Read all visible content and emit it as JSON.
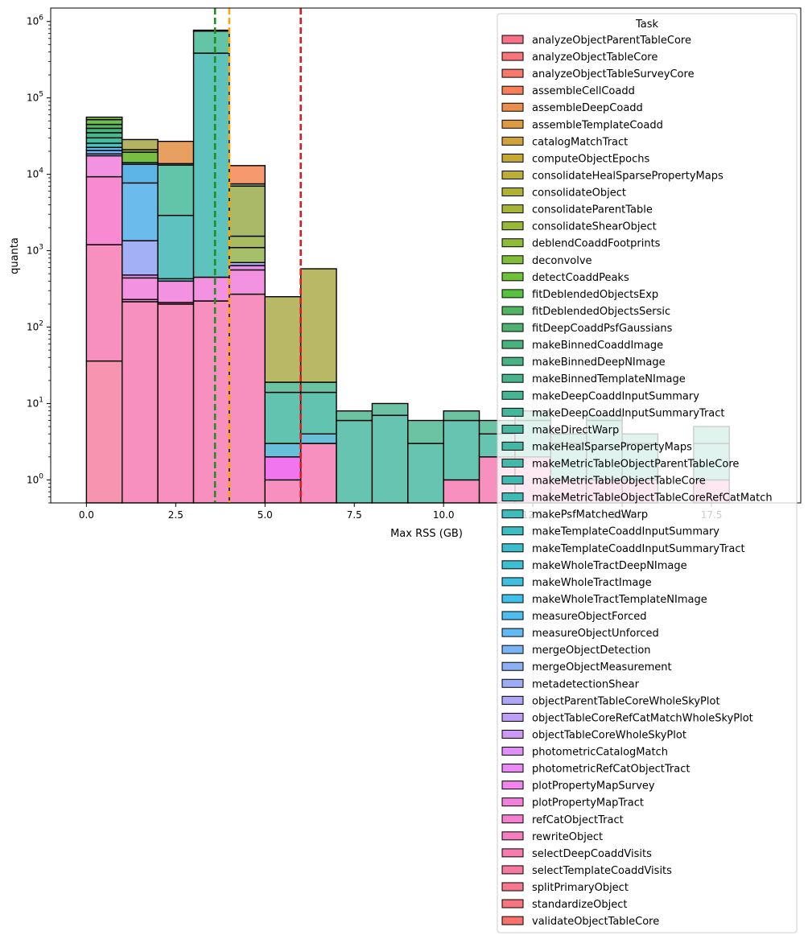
{
  "chart_data": {
    "type": "bar",
    "subtype": "stacked-histogram",
    "title": "",
    "xlabel": "Max RSS (GB)",
    "ylabel": "quanta",
    "xlim": [
      -1,
      20
    ],
    "ylim": [
      0.5,
      1500000
    ],
    "yscale": "log",
    "grid": false,
    "bin_width": 1.0,
    "x_ticks": [
      {
        "value": 0.0,
        "label": "0.0"
      },
      {
        "value": 2.5,
        "label": "2.5"
      },
      {
        "value": 5.0,
        "label": "5.0"
      },
      {
        "value": 7.5,
        "label": "7.5"
      },
      {
        "value": 10.0,
        "label": "10.0"
      },
      {
        "value": 12.5,
        "label": "12.5"
      },
      {
        "value": 15.0,
        "label": "15.0"
      },
      {
        "value": 17.5,
        "label": "17.5"
      }
    ],
    "y_ticks": [
      {
        "exp": 0,
        "label": "10",
        "sup": "0"
      },
      {
        "exp": 1,
        "label": "10",
        "sup": "1"
      },
      {
        "exp": 2,
        "label": "10",
        "sup": "2"
      },
      {
        "exp": 3,
        "label": "10",
        "sup": "3"
      },
      {
        "exp": 4,
        "label": "10",
        "sup": "4"
      },
      {
        "exp": 5,
        "label": "10",
        "sup": "5"
      },
      {
        "exp": 6,
        "label": "10",
        "sup": "6"
      }
    ],
    "vlines": [
      {
        "x": 3.6,
        "color": "#228b22"
      },
      {
        "x": 4.0,
        "color": "#ffa500"
      },
      {
        "x": 6.0,
        "color": "#e41a1c"
      }
    ],
    "legend": {
      "title": "Task",
      "position": "top-right",
      "entries": [
        {
          "label": "analyzeObjectParentTableCore",
          "color": "#f77189"
        },
        {
          "label": "analyzeObjectTableCore",
          "color": "#f7757a"
        },
        {
          "label": "analyzeObjectTableSurveyCore",
          "color": "#f7796a"
        },
        {
          "label": "assembleCellCoadd",
          "color": "#f67e59"
        },
        {
          "label": "assembleDeepCoadd",
          "color": "#e98e4c"
        },
        {
          "label": "assembleTemplateCoadd",
          "color": "#dc9a42"
        },
        {
          "label": "catalogMatchTract",
          "color": "#d1a239"
        },
        {
          "label": "computeObjectEpochs",
          "color": "#c6a933"
        },
        {
          "label": "consolidateHealSparsePropertyMaps",
          "color": "#bbae32"
        },
        {
          "label": "consolidateObject",
          "color": "#b1b234"
        },
        {
          "label": "consolidateParentTable",
          "color": "#a6b535"
        },
        {
          "label": "consolidateShearObject",
          "color": "#9ab837"
        },
        {
          "label": "deblendCoaddFootprints",
          "color": "#8ebb38"
        },
        {
          "label": "deconvolve",
          "color": "#80be39"
        },
        {
          "label": "detectCoaddPeaks",
          "color": "#6fc13a"
        },
        {
          "label": "fitDeblendedObjectsExp",
          "color": "#58c340"
        },
        {
          "label": "fitDeblendedObjectsSersic",
          "color": "#50b462"
        },
        {
          "label": "fitDeepCoaddPsfGaussians",
          "color": "#4fb172"
        },
        {
          "label": "makeBinnedCoaddImage",
          "color": "#4ab27c"
        },
        {
          "label": "makeBinnedDeepNImage",
          "color": "#49b385"
        },
        {
          "label": "makeBinnedTemplateNImage",
          "color": "#47b48c"
        },
        {
          "label": "makeDeepCoaddInputSummary",
          "color": "#46b593"
        },
        {
          "label": "makeDeepCoaddInputSummaryTract",
          "color": "#44b699"
        },
        {
          "label": "makeDirectWarp",
          "color": "#43b79f"
        },
        {
          "label": "makeHealSparsePropertyMaps",
          "color": "#42b8a5"
        },
        {
          "label": "makeMetricTableObjectParentTableCore",
          "color": "#41b9ab"
        },
        {
          "label": "makeMetricTableObjectTableCore",
          "color": "#40bab1"
        },
        {
          "label": "makeMetricTableObjectTableCoreRefCatMatch",
          "color": "#3fbbb7"
        },
        {
          "label": "makePsfMatchedWarp",
          "color": "#3ebbbd"
        },
        {
          "label": "makeTemplateCoaddInputSummary",
          "color": "#3dbcc4"
        },
        {
          "label": "makeTemplateCoaddInputSummaryTract",
          "color": "#3cbdcb"
        },
        {
          "label": "makeWholeTractDeepNImage",
          "color": "#3dbed3"
        },
        {
          "label": "makeWholeTractImage",
          "color": "#3dbfdd"
        },
        {
          "label": "makeWholeTractTemplateNImage",
          "color": "#3ec0e8"
        },
        {
          "label": "measureObjectForced",
          "color": "#4cbef1"
        },
        {
          "label": "measureObjectUnforced",
          "color": "#63b9f2"
        },
        {
          "label": "mergeObjectDetection",
          "color": "#79b4f4"
        },
        {
          "label": "mergeObjectMeasurement",
          "color": "#8cb0f5"
        },
        {
          "label": "metadetectionShear",
          "color": "#9eabf6"
        },
        {
          "label": "objectParentTableCoreWholeSkyPlot",
          "color": "#afa5f6"
        },
        {
          "label": "objectTableCoreRefCatMatchWholeSkyPlot",
          "color": "#bf9ff6"
        },
        {
          "label": "objectTableCoreWholeSkyPlot",
          "color": "#ce98f6"
        },
        {
          "label": "photometricCatalogMatch",
          "color": "#dd91f5"
        },
        {
          "label": "photometricRefCatObjectTract",
          "color": "#ea8af4"
        },
        {
          "label": "plotPropertyMapSurvey",
          "color": "#f284ed"
        },
        {
          "label": "plotPropertyMapTract",
          "color": "#f480de"
        },
        {
          "label": "refCatObjectTract",
          "color": "#f57fcf"
        },
        {
          "label": "rewriteObject",
          "color": "#f57dbf"
        },
        {
          "label": "selectDeepCoaddVisits",
          "color": "#f67baf"
        },
        {
          "label": "selectTemplateCoaddVisits",
          "color": "#f67aa0"
        },
        {
          "label": "splitPrimaryObject",
          "color": "#f6788f"
        },
        {
          "label": "standardizeObject",
          "color": "#f7757f"
        },
        {
          "label": "validateObjectTableCore",
          "color": "#f7726c"
        }
      ]
    },
    "bins": [
      {
        "x0": 0,
        "x1": 1,
        "segments": [
          {
            "top": 36,
            "color": "#f795b0"
          },
          {
            "top": 1200,
            "color": "#f78fbf"
          },
          {
            "top": 9300,
            "color": "#f78ad0"
          },
          {
            "top": 17500,
            "color": "#f292e0"
          },
          {
            "top": 18500,
            "color": "#a4b0f5"
          },
          {
            "top": 20500,
            "color": "#79b4f4"
          },
          {
            "top": 22500,
            "color": "#63b9f2"
          },
          {
            "top": 25500,
            "color": "#45c3c3"
          },
          {
            "top": 30000,
            "color": "#46bba0"
          },
          {
            "top": 35000,
            "color": "#47b78e"
          },
          {
            "top": 40000,
            "color": "#4bb47a"
          },
          {
            "top": 45000,
            "color": "#55b766"
          },
          {
            "top": 52000,
            "color": "#6dbe4c"
          },
          {
            "top": 56000,
            "color": "#84be3d"
          }
        ]
      },
      {
        "x0": 1,
        "x1": 2,
        "segments": [
          {
            "top": 215,
            "color": "#f78fbf"
          },
          {
            "top": 230,
            "color": "#f78ad0"
          },
          {
            "top": 440,
            "color": "#f292e0"
          },
          {
            "top": 480,
            "color": "#e88ce9"
          },
          {
            "top": 1350,
            "color": "#a4b0f5"
          },
          {
            "top": 7700,
            "color": "#6bbbed"
          },
          {
            "top": 13500,
            "color": "#5cb5e6"
          },
          {
            "top": 14200,
            "color": "#48b8a0"
          },
          {
            "top": 19500,
            "color": "#78be45"
          },
          {
            "top": 21000,
            "color": "#9ab837"
          },
          {
            "top": 28500,
            "color": "#b5b361"
          }
        ]
      },
      {
        "x0": 2,
        "x1": 3,
        "segments": [
          {
            "top": 200,
            "color": "#f78fbf"
          },
          {
            "top": 210,
            "color": "#f78ad0"
          },
          {
            "top": 400,
            "color": "#f292e0"
          },
          {
            "top": 430,
            "color": "#56c1c6"
          },
          {
            "top": 2900,
            "color": "#5ec3c0"
          },
          {
            "top": 13200,
            "color": "#62c4a8"
          },
          {
            "top": 13800,
            "color": "#50b874"
          },
          {
            "top": 27000,
            "color": "#e8a060"
          }
        ]
      },
      {
        "x0": 3,
        "x1": 4,
        "segments": [
          {
            "top": 220,
            "color": "#f78fbf"
          },
          {
            "top": 450,
            "color": "#f292e0"
          },
          {
            "top": 385000,
            "color": "#5ec3bd"
          },
          {
            "top": 750000,
            "color": "#64c4a6"
          },
          {
            "top": 770000,
            "color": "#6dbe4c"
          }
        ]
      },
      {
        "x0": 4,
        "x1": 5,
        "segments": [
          {
            "top": 270,
            "color": "#f78fbf"
          },
          {
            "top": 560,
            "color": "#f292e0"
          },
          {
            "top": 640,
            "color": "#e88ce9"
          },
          {
            "top": 700,
            "color": "#a4b0f5"
          },
          {
            "top": 1100,
            "color": "#a6c06a"
          },
          {
            "top": 1550,
            "color": "#a8bb60"
          },
          {
            "top": 7000,
            "color": "#a9b968"
          },
          {
            "top": 7500,
            "color": "#9ab837"
          },
          {
            "top": 13000,
            "color": "#f7996e"
          }
        ]
      },
      {
        "x0": 5,
        "x1": 6,
        "segments": [
          {
            "top": 1,
            "color": "#f78fbf"
          },
          {
            "top": 2,
            "color": "#f175ef"
          },
          {
            "top": 3,
            "color": "#68bfd9"
          },
          {
            "top": 14,
            "color": "#62c4b0"
          },
          {
            "top": 19,
            "color": "#6cc3a3"
          },
          {
            "top": 250,
            "color": "#b9b867"
          }
        ]
      },
      {
        "x0": 6,
        "x1": 7,
        "segments": [
          {
            "top": 3,
            "color": "#f78fbf"
          },
          {
            "top": 4,
            "color": "#68bfd9"
          },
          {
            "top": 14,
            "color": "#62c4b0"
          },
          {
            "top": 19,
            "color": "#6cc3a3"
          },
          {
            "top": 580,
            "color": "#b9b867"
          }
        ]
      },
      {
        "x0": 7,
        "x1": 8,
        "segments": [
          {
            "top": 6,
            "color": "#66c4b0"
          },
          {
            "top": 8,
            "color": "#6cc3a3"
          }
        ]
      },
      {
        "x0": 8,
        "x1": 9,
        "segments": [
          {
            "top": 7,
            "color": "#66c4b0"
          },
          {
            "top": 10,
            "color": "#6cc3a3"
          }
        ]
      },
      {
        "x0": 9,
        "x1": 10,
        "segments": [
          {
            "top": 3,
            "color": "#66c4b0"
          },
          {
            "top": 6,
            "color": "#6cc3a3"
          }
        ]
      },
      {
        "x0": 10,
        "x1": 11,
        "segments": [
          {
            "top": 1,
            "color": "#f78fbf"
          },
          {
            "top": 6,
            "color": "#66c4b0"
          },
          {
            "top": 8,
            "color": "#6cc3a3"
          }
        ]
      },
      {
        "x0": 11,
        "x1": 12,
        "segments": [
          {
            "top": 2,
            "color": "#f78fbf"
          },
          {
            "top": 4,
            "color": "#66c4b0"
          },
          {
            "top": 6,
            "color": "#6cc3a3"
          }
        ]
      },
      {
        "x0": 12,
        "x1": 13,
        "segments": [
          {
            "top": 2,
            "color": "#f78fbf"
          },
          {
            "top": 6,
            "color": "#66c4b0"
          },
          {
            "top": 8,
            "color": "#6cc3a3"
          }
        ]
      },
      {
        "x0": 13,
        "x1": 14,
        "segments": [
          {
            "top": 1,
            "color": "#f78fbf"
          },
          {
            "top": 3,
            "color": "#66c4b0"
          },
          {
            "top": 4,
            "color": "#6cc3a3"
          }
        ]
      },
      {
        "x0": 14,
        "x1": 15,
        "segments": [
          {
            "top": 1,
            "color": "#f78fbf"
          },
          {
            "top": 6,
            "color": "#66c4b0"
          },
          {
            "top": 7,
            "color": "#6cc3a3"
          }
        ]
      },
      {
        "x0": 15,
        "x1": 16,
        "segments": [
          {
            "top": 1,
            "color": "#f78fbf"
          },
          {
            "top": 3,
            "color": "#66c4b0"
          },
          {
            "top": 4,
            "color": "#6cc3a3"
          }
        ]
      },
      {
        "x0": 17,
        "x1": 18,
        "segments": [
          {
            "top": 1,
            "color": "#f78fbf"
          },
          {
            "top": 3,
            "color": "#66c4b0"
          },
          {
            "top": 5,
            "color": "#6cc3a3"
          }
        ]
      }
    ]
  }
}
